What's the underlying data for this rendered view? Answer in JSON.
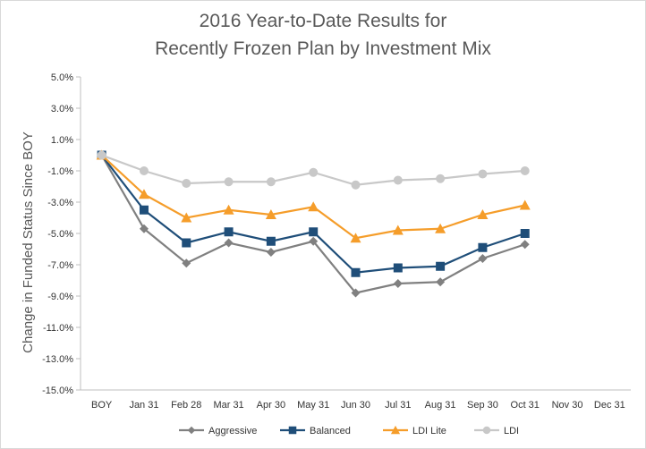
{
  "chart_data": {
    "type": "line",
    "title_line1": "2016 Year-to-Date Results for",
    "title_line2": "Recently Frozen Plan by Investment Mix",
    "ylabel": "Change in Funded Status Since BOY",
    "xlabel": "",
    "categories": [
      "BOY",
      "Jan 31",
      "Feb 28",
      "Mar 31",
      "Apr 30",
      "May 31",
      "Jun 30",
      "Jul 31",
      "Aug 31",
      "Sep 30",
      "Oct 31",
      "Nov 30",
      "Dec 31"
    ],
    "y_ticks": [
      5.0,
      3.0,
      1.0,
      -1.0,
      -3.0,
      -5.0,
      -7.0,
      -9.0,
      -11.0,
      -13.0,
      -15.0
    ],
    "y_tick_labels": [
      "5.0%",
      "3.0%",
      "1.0%",
      "-1.0%",
      "-3.0%",
      "-5.0%",
      "-7.0%",
      "-9.0%",
      "-11.0%",
      "-13.0%",
      "-15.0%"
    ],
    "ylim": [
      -15,
      5
    ],
    "grid": "none",
    "legend_position": "bottom",
    "series": [
      {
        "name": "Aggressive",
        "color": "#808080",
        "marker": "diamond",
        "values": [
          0.0,
          -4.7,
          -6.9,
          -5.6,
          -6.2,
          -5.5,
          -8.8,
          -8.2,
          -8.1,
          -6.6,
          -5.7,
          null,
          null
        ]
      },
      {
        "name": "Balanced",
        "color": "#1f4e79",
        "marker": "square",
        "values": [
          0.0,
          -3.5,
          -5.6,
          -4.9,
          -5.5,
          -4.9,
          -7.5,
          -7.2,
          -7.1,
          -5.9,
          -5.0,
          null,
          null
        ]
      },
      {
        "name": "LDI Lite",
        "color": "#f59d2a",
        "marker": "triangle",
        "values": [
          0.0,
          -2.5,
          -4.0,
          -3.5,
          -3.8,
          -3.3,
          -5.3,
          -4.8,
          -4.7,
          -3.8,
          -3.2,
          null,
          null
        ]
      },
      {
        "name": "LDI",
        "color": "#c8c8c8",
        "marker": "circle",
        "values": [
          0.0,
          -1.0,
          -1.8,
          -1.7,
          -1.7,
          -1.1,
          -1.9,
          -1.6,
          -1.5,
          -1.2,
          -1.0,
          null,
          null
        ]
      }
    ]
  }
}
